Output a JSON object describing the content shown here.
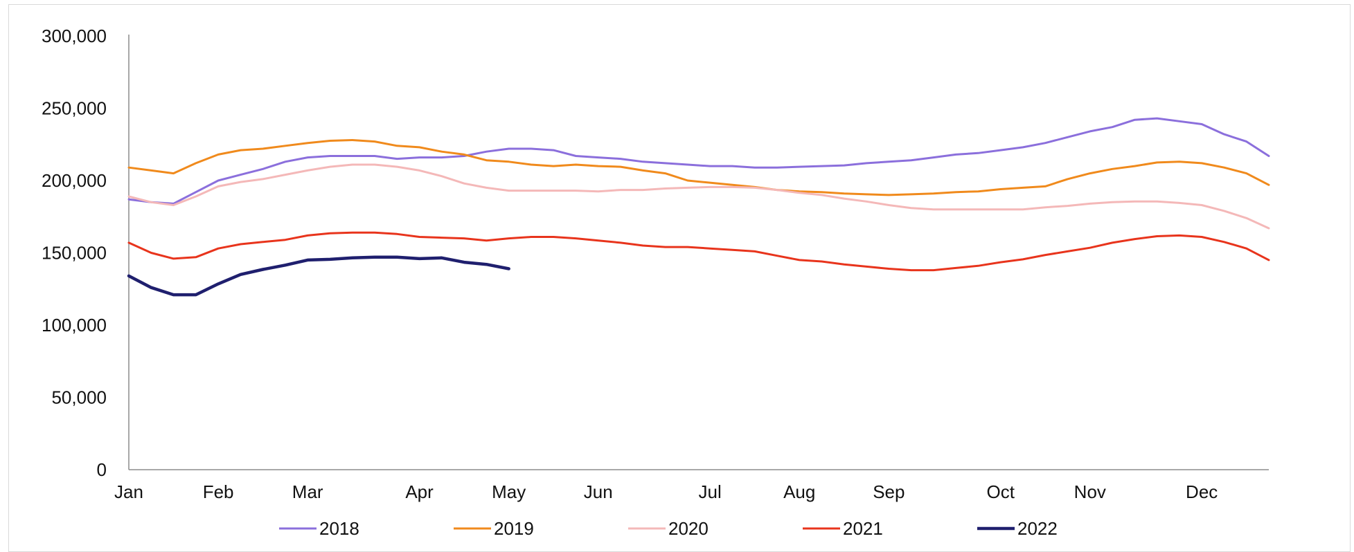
{
  "chart_data": {
    "type": "line",
    "title": "",
    "xlabel": "",
    "ylabel": "",
    "ylim": [
      0,
      300000
    ],
    "y_ticks": [
      0,
      50000,
      100000,
      150000,
      200000,
      250000,
      300000
    ],
    "y_tick_labels": [
      "0",
      "50,000",
      "100,000",
      "150,000",
      "200,000",
      "250,000",
      "300,000"
    ],
    "x_ticks": [
      1,
      5,
      9,
      14,
      18,
      22,
      27,
      31,
      35,
      40,
      44,
      49
    ],
    "x_tick_labels": [
      "Jan",
      "Feb",
      "Mar",
      "Apr",
      "May",
      "Jun",
      "Jul",
      "Aug",
      "Sep",
      "Oct",
      "Nov",
      "Dec"
    ],
    "xlim": [
      1,
      52
    ],
    "grid": false,
    "legend_position": "bottom",
    "series": [
      {
        "name": "2018",
        "color": "#8B6FDC",
        "x": [
          1,
          2,
          3,
          4,
          5,
          6,
          7,
          8,
          9,
          10,
          11,
          12,
          13,
          14,
          15,
          16,
          17,
          18,
          19,
          20,
          21,
          22,
          23,
          24,
          25,
          26,
          27,
          28,
          29,
          30,
          31,
          32,
          33,
          34,
          35,
          36,
          37,
          38,
          39,
          40,
          41,
          42,
          43,
          44,
          45,
          46,
          47,
          48,
          49,
          50,
          51,
          52
        ],
        "values": [
          187000,
          185000,
          184000,
          192000,
          200000,
          204000,
          208000,
          213000,
          216000,
          217000,
          217000,
          217000,
          215000,
          216000,
          216000,
          217000,
          220000,
          222000,
          222000,
          221000,
          217000,
          216000,
          215000,
          213000,
          212000,
          211000,
          210000,
          210000,
          209000,
          209000,
          209500,
          210000,
          210500,
          212000,
          213000,
          214000,
          216000,
          218000,
          219000,
          221000,
          223000,
          226000,
          230000,
          234000,
          237000,
          242000,
          243000,
          241000,
          239000,
          232000,
          227000,
          217000
        ]
      },
      {
        "name": "2019",
        "color": "#F08A1C",
        "x": [
          1,
          2,
          3,
          4,
          5,
          6,
          7,
          8,
          9,
          10,
          11,
          12,
          13,
          14,
          15,
          16,
          17,
          18,
          19,
          20,
          21,
          22,
          23,
          24,
          25,
          26,
          27,
          28,
          29,
          30,
          31,
          32,
          33,
          34,
          35,
          36,
          37,
          38,
          39,
          40,
          41,
          42,
          43,
          44,
          45,
          46,
          47,
          48,
          49,
          50,
          51,
          52
        ],
        "values": [
          209000,
          207000,
          205000,
          212000,
          218000,
          221000,
          222000,
          224000,
          226000,
          227500,
          228000,
          227000,
          224000,
          223000,
          220000,
          218000,
          214000,
          213000,
          211000,
          210000,
          211000,
          210000,
          209500,
          207000,
          205000,
          200000,
          198500,
          197000,
          195500,
          193500,
          192500,
          192000,
          191000,
          190500,
          190000,
          190500,
          191000,
          192000,
          192500,
          194000,
          195000,
          196000,
          201000,
          205000,
          208000,
          210000,
          212500,
          213000,
          212000,
          209000,
          205000,
          197000
        ]
      },
      {
        "name": "2020",
        "color": "#F4B8B8",
        "x": [
          1,
          2,
          3,
          4,
          5,
          6,
          7,
          8,
          9,
          10,
          11,
          12,
          13,
          14,
          15,
          16,
          17,
          18,
          19,
          20,
          21,
          22,
          23,
          24,
          25,
          26,
          27,
          28,
          29,
          30,
          31,
          32,
          33,
          34,
          35,
          36,
          37,
          38,
          39,
          40,
          41,
          42,
          43,
          44,
          45,
          46,
          47,
          48,
          49,
          50,
          51,
          52
        ],
        "values": [
          189000,
          185000,
          183000,
          189000,
          196000,
          199000,
          201000,
          204000,
          207000,
          209500,
          211000,
          211000,
          209500,
          207000,
          203000,
          198000,
          195000,
          193000,
          193000,
          193000,
          193000,
          192500,
          193500,
          193500,
          194500,
          195000,
          195500,
          195500,
          195000,
          193500,
          191500,
          190000,
          187500,
          185500,
          183000,
          181000,
          180000,
          180000,
          180000,
          180000,
          180000,
          181500,
          182500,
          184000,
          185000,
          185500,
          185500,
          184500,
          183000,
          179000,
          174000,
          167000
        ]
      },
      {
        "name": "2021",
        "color": "#E8341C",
        "x": [
          1,
          2,
          3,
          4,
          5,
          6,
          7,
          8,
          9,
          10,
          11,
          12,
          13,
          14,
          15,
          16,
          17,
          18,
          19,
          20,
          21,
          22,
          23,
          24,
          25,
          26,
          27,
          28,
          29,
          30,
          31,
          32,
          33,
          34,
          35,
          36,
          37,
          38,
          39,
          40,
          41,
          42,
          43,
          44,
          45,
          46,
          47,
          48,
          49,
          50,
          51,
          52
        ],
        "values": [
          157000,
          150000,
          146000,
          147000,
          153000,
          156000,
          157500,
          159000,
          162000,
          163500,
          164000,
          164000,
          163000,
          161000,
          160500,
          160000,
          158500,
          160000,
          161000,
          161000,
          160000,
          158500,
          157000,
          155000,
          154000,
          154000,
          153000,
          152000,
          151000,
          148000,
          145000,
          144000,
          142000,
          140500,
          139000,
          138000,
          138000,
          139500,
          141000,
          143500,
          145500,
          148500,
          151000,
          153500,
          157000,
          159500,
          161500,
          162000,
          161000,
          157500,
          153000,
          145000
        ]
      },
      {
        "name": "2022",
        "color": "#1F1F6E",
        "x": [
          1,
          2,
          3,
          4,
          5,
          6,
          7,
          8,
          9,
          10,
          11,
          12,
          13,
          14,
          15,
          16,
          17,
          18
        ],
        "values": [
          134000,
          126000,
          121000,
          121000,
          128500,
          135000,
          138500,
          141500,
          145000,
          145500,
          146500,
          147000,
          147000,
          146000,
          146500,
          143500,
          142000,
          139000
        ]
      }
    ]
  }
}
